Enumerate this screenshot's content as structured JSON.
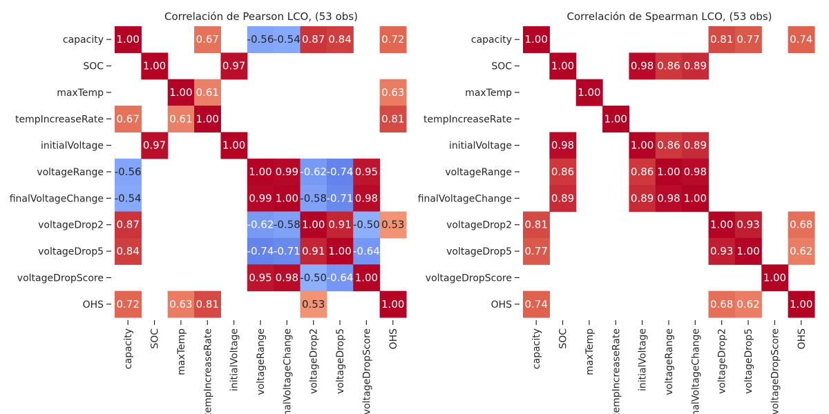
{
  "chart_data": [
    {
      "type": "heatmap",
      "title": "Correlación de Pearson LCO, (53 obs)",
      "variables": [
        "capacity",
        "SOC",
        "maxTemp",
        "tempIncreaseRate",
        "initialVoltage",
        "voltageRange",
        "finalVoltageChange",
        "voltageDrop2",
        "voltageDrop5",
        "voltageDropScore",
        "OHS"
      ],
      "matrix": [
        [
          1.0,
          null,
          null,
          0.67,
          null,
          -0.56,
          -0.54,
          0.87,
          0.84,
          null,
          0.72
        ],
        [
          null,
          1.0,
          null,
          null,
          0.97,
          null,
          null,
          null,
          null,
          null,
          null
        ],
        [
          null,
          null,
          1.0,
          0.61,
          null,
          null,
          null,
          null,
          null,
          null,
          0.63
        ],
        [
          0.67,
          null,
          0.61,
          1.0,
          null,
          null,
          null,
          null,
          null,
          null,
          0.81
        ],
        [
          null,
          0.97,
          null,
          null,
          1.0,
          null,
          null,
          null,
          null,
          null,
          null
        ],
        [
          -0.56,
          null,
          null,
          null,
          null,
          1.0,
          0.99,
          -0.62,
          -0.74,
          0.95,
          null
        ],
        [
          -0.54,
          null,
          null,
          null,
          null,
          0.99,
          1.0,
          -0.58,
          -0.71,
          0.98,
          null
        ],
        [
          0.87,
          null,
          null,
          null,
          null,
          -0.62,
          -0.58,
          1.0,
          0.91,
          -0.5,
          0.53
        ],
        [
          0.84,
          null,
          null,
          null,
          null,
          -0.74,
          -0.71,
          0.91,
          1.0,
          -0.64,
          null
        ],
        [
          null,
          null,
          null,
          null,
          null,
          0.95,
          0.98,
          -0.5,
          -0.64,
          1.0,
          null
        ],
        [
          0.72,
          null,
          0.63,
          0.81,
          null,
          null,
          null,
          0.53,
          null,
          null,
          1.0
        ]
      ],
      "value_range": [
        -1,
        1
      ],
      "colormap": "coolwarm"
    },
    {
      "type": "heatmap",
      "title": "Correlación de Spearman LCO, (53 obs)",
      "variables": [
        "capacity",
        "SOC",
        "maxTemp",
        "tempIncreaseRate",
        "initialVoltage",
        "voltageRange",
        "finalVoltageChange",
        "voltageDrop2",
        "voltageDrop5",
        "voltageDropScore",
        "OHS"
      ],
      "matrix": [
        [
          1.0,
          null,
          null,
          null,
          null,
          null,
          null,
          0.81,
          0.77,
          null,
          0.74
        ],
        [
          null,
          1.0,
          null,
          null,
          0.98,
          0.86,
          0.89,
          null,
          null,
          null,
          null
        ],
        [
          null,
          null,
          1.0,
          null,
          null,
          null,
          null,
          null,
          null,
          null,
          null
        ],
        [
          null,
          null,
          null,
          1.0,
          null,
          null,
          null,
          null,
          null,
          null,
          null
        ],
        [
          null,
          0.98,
          null,
          null,
          1.0,
          0.86,
          0.89,
          null,
          null,
          null,
          null
        ],
        [
          null,
          0.86,
          null,
          null,
          0.86,
          1.0,
          0.98,
          null,
          null,
          null,
          null
        ],
        [
          null,
          0.89,
          null,
          null,
          0.89,
          0.98,
          1.0,
          null,
          null,
          null,
          null
        ],
        [
          0.81,
          null,
          null,
          null,
          null,
          null,
          null,
          1.0,
          0.93,
          null,
          0.68
        ],
        [
          0.77,
          null,
          null,
          null,
          null,
          null,
          null,
          0.93,
          1.0,
          null,
          0.62
        ],
        [
          null,
          null,
          null,
          null,
          null,
          null,
          null,
          null,
          null,
          1.0,
          null
        ],
        [
          0.74,
          null,
          null,
          null,
          null,
          null,
          null,
          0.68,
          0.62,
          null,
          1.0
        ]
      ],
      "value_range": [
        -1,
        1
      ],
      "colormap": "coolwarm"
    }
  ]
}
